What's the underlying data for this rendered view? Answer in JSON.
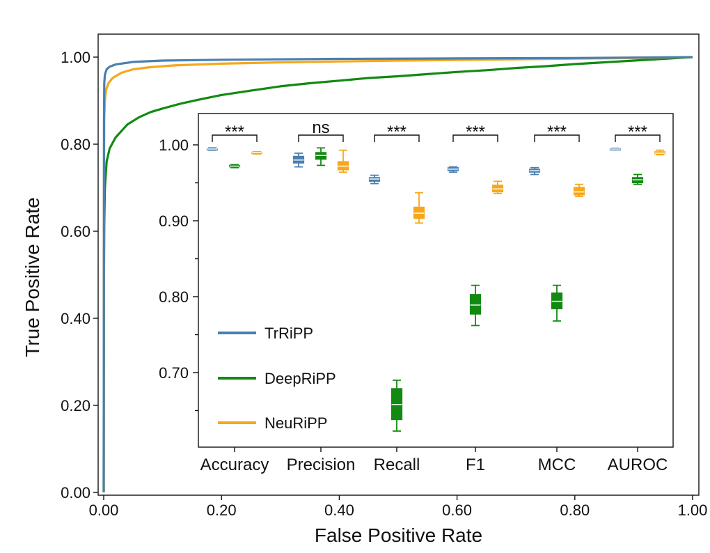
{
  "chart_data": [
    {
      "type": "line",
      "title": "",
      "xlabel": "False Positive Rate",
      "ylabel": "True Positive Rate",
      "xlim": [
        0,
        1
      ],
      "ylim": [
        0,
        1
      ],
      "x_ticks": [
        "0.00",
        "0.20",
        "0.40",
        "0.60",
        "0.80",
        "1.00"
      ],
      "y_ticks": [
        "0.00",
        "0.20",
        "0.40",
        "0.60",
        "0.80",
        "1.00"
      ],
      "series": [
        {
          "name": "DeepRiPP",
          "color": "#128a12",
          "points": [
            [
              0,
              0
            ],
            [
              0.0005,
              0.5
            ],
            [
              0.001,
              0.62
            ],
            [
              0.002,
              0.7
            ],
            [
              0.005,
              0.76
            ],
            [
              0.01,
              0.79
            ],
            [
              0.02,
              0.815
            ],
            [
              0.04,
              0.845
            ],
            [
              0.06,
              0.862
            ],
            [
              0.08,
              0.874
            ],
            [
              0.1,
              0.882
            ],
            [
              0.13,
              0.893
            ],
            [
              0.16,
              0.902
            ],
            [
              0.2,
              0.913
            ],
            [
              0.25,
              0.923
            ],
            [
              0.3,
              0.933
            ],
            [
              0.35,
              0.94
            ],
            [
              0.4,
              0.946
            ],
            [
              0.45,
              0.952
            ],
            [
              0.5,
              0.956
            ],
            [
              0.55,
              0.961
            ],
            [
              0.6,
              0.966
            ],
            [
              0.65,
              0.97
            ],
            [
              0.7,
              0.975
            ],
            [
              0.75,
              0.979
            ],
            [
              0.8,
              0.984
            ],
            [
              0.85,
              0.988
            ],
            [
              0.9,
              0.992
            ],
            [
              0.95,
              0.996
            ],
            [
              1,
              1
            ]
          ]
        },
        {
          "name": "NeuRiPP",
          "color": "#f5a81c",
          "points": [
            [
              0,
              0
            ],
            [
              0.0005,
              0.7
            ],
            [
              0.001,
              0.86
            ],
            [
              0.002,
              0.9
            ],
            [
              0.004,
              0.925
            ],
            [
              0.008,
              0.94
            ],
            [
              0.015,
              0.952
            ],
            [
              0.03,
              0.964
            ],
            [
              0.05,
              0.972
            ],
            [
              0.08,
              0.977
            ],
            [
              0.12,
              0.981
            ],
            [
              0.2,
              0.985
            ],
            [
              0.3,
              0.988
            ],
            [
              0.5,
              0.992
            ],
            [
              0.7,
              0.995
            ],
            [
              0.9,
              0.998
            ],
            [
              1,
              1
            ]
          ]
        },
        {
          "name": "TrRiPP",
          "color": "#4a7fb0",
          "points": [
            [
              0,
              0
            ],
            [
              0.0005,
              0.85
            ],
            [
              0.001,
              0.94
            ],
            [
              0.002,
              0.96
            ],
            [
              0.005,
              0.972
            ],
            [
              0.01,
              0.978
            ],
            [
              0.02,
              0.983
            ],
            [
              0.05,
              0.989
            ],
            [
              0.1,
              0.992
            ],
            [
              0.2,
              0.994
            ],
            [
              0.4,
              0.996
            ],
            [
              0.6,
              0.997
            ],
            [
              0.8,
              0.998
            ],
            [
              1,
              1
            ]
          ]
        }
      ]
    },
    {
      "type": "box",
      "inset": true,
      "categories": [
        "Accuracy",
        "Precision",
        "Recall",
        "F1",
        "MCC",
        "AUROC"
      ],
      "ylim": [
        0.6,
        1.025
      ],
      "y_ticks": [
        "1.00",
        "0.90",
        "0.80",
        "0.70"
      ],
      "legend": [
        "TrRiPP",
        "DeepRiPP",
        "NeuRiPP"
      ],
      "legend_position": "bottom-left",
      "annotations": [
        {
          "category": "Accuracy",
          "text": "***"
        },
        {
          "category": "Precision",
          "text": "ns"
        },
        {
          "category": "Recall",
          "text": "***"
        },
        {
          "category": "F1",
          "text": "***"
        },
        {
          "category": "MCC",
          "text": "***"
        },
        {
          "category": "AUROC",
          "text": "***"
        }
      ],
      "series": [
        {
          "name": "TrRiPP",
          "color": "#4a7fb0",
          "boxes": [
            {
              "min": 0.993,
              "q1": 0.994,
              "median": 0.9945,
              "q3": 0.995,
              "max": 0.996
            },
            {
              "min": 0.971,
              "q1": 0.976,
              "median": 0.98,
              "q3": 0.985,
              "max": 0.989
            },
            {
              "min": 0.949,
              "q1": 0.952,
              "median": 0.955,
              "q3": 0.957,
              "max": 0.96
            },
            {
              "min": 0.964,
              "q1": 0.966,
              "median": 0.968,
              "q3": 0.97,
              "max": 0.971
            },
            {
              "min": 0.961,
              "q1": 0.964,
              "median": 0.966,
              "q3": 0.968,
              "max": 0.97
            },
            {
              "min": 0.9935,
              "q1": 0.994,
              "median": 0.9945,
              "q3": 0.995,
              "max": 0.9955
            }
          ]
        },
        {
          "name": "DeepRiPP",
          "color": "#128a12",
          "boxes": [
            {
              "min": 0.97,
              "q1": 0.971,
              "median": 0.972,
              "q3": 0.973,
              "max": 0.974
            },
            {
              "min": 0.973,
              "q1": 0.981,
              "median": 0.986,
              "q3": 0.99,
              "max": 0.996
            },
            {
              "min": 0.623,
              "q1": 0.638,
              "median": 0.658,
              "q3": 0.679,
              "max": 0.69
            },
            {
              "min": 0.762,
              "q1": 0.777,
              "median": 0.789,
              "q3": 0.803,
              "max": 0.815
            },
            {
              "min": 0.768,
              "q1": 0.784,
              "median": 0.794,
              "q3": 0.805,
              "max": 0.815
            },
            {
              "min": 0.948,
              "q1": 0.95,
              "median": 0.954,
              "q3": 0.957,
              "max": 0.961
            }
          ]
        },
        {
          "name": "NeuRiPP",
          "color": "#f5a81c",
          "boxes": [
            {
              "min": 0.988,
              "q1": 0.989,
              "median": 0.99,
              "q3": 0.9905,
              "max": 0.991
            },
            {
              "min": 0.964,
              "q1": 0.967,
              "median": 0.972,
              "q3": 0.978,
              "max": 0.993
            },
            {
              "min": 0.897,
              "q1": 0.903,
              "median": 0.91,
              "q3": 0.918,
              "max": 0.937
            },
            {
              "min": 0.936,
              "q1": 0.938,
              "median": 0.942,
              "q3": 0.947,
              "max": 0.952
            },
            {
              "min": 0.932,
              "q1": 0.934,
              "median": 0.938,
              "q3": 0.944,
              "max": 0.948
            },
            {
              "min": 0.987,
              "q1": 0.988,
              "median": 0.989,
              "q3": 0.991,
              "max": 0.993
            }
          ]
        }
      ]
    }
  ]
}
